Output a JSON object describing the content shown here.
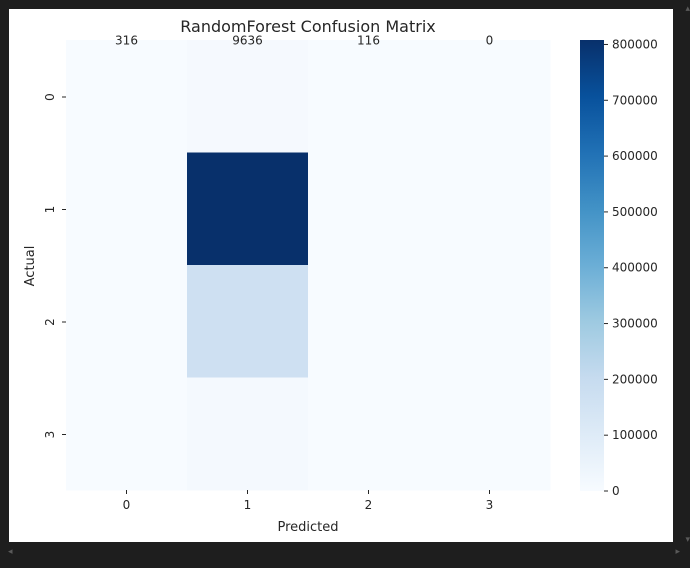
{
  "icons": {
    "scroll_left": "◂",
    "scroll_right": "▸",
    "scroll_up": "▴",
    "scroll_down": "▾"
  },
  "chart_data": {
    "type": "heatmap",
    "title": "RandomForest Confusion Matrix",
    "xlabel": "Predicted",
    "ylabel": "Actual",
    "x_categories": [
      "0",
      "1",
      "2",
      "3"
    ],
    "y_categories": [
      "0",
      "1",
      "2",
      "3"
    ],
    "values": [
      [
        316,
        9636,
        116,
        0
      ],
      [
        0,
        808000,
        0,
        0
      ],
      [
        0,
        170000,
        0,
        0
      ],
      [
        0,
        12000,
        0,
        0
      ]
    ],
    "annotations_shown": [
      [
        "316",
        "9636",
        "116",
        "0"
      ],
      [
        "",
        "",
        "",
        ""
      ],
      [
        "",
        "",
        "",
        ""
      ],
      [
        "",
        "",
        "",
        ""
      ]
    ],
    "colormap": "Blues",
    "colorbar": {
      "range": [
        0,
        808000
      ],
      "ticks": [
        0,
        100000,
        200000,
        300000,
        400000,
        500000,
        600000,
        700000,
        800000
      ],
      "tick_labels": [
        "0",
        "100000",
        "200000",
        "300000",
        "400000",
        "500000",
        "600000",
        "700000",
        "800000"
      ]
    },
    "colors": {
      "low": "#f7fbff",
      "high": "#08306b",
      "annotation_text": "#262626"
    }
  }
}
